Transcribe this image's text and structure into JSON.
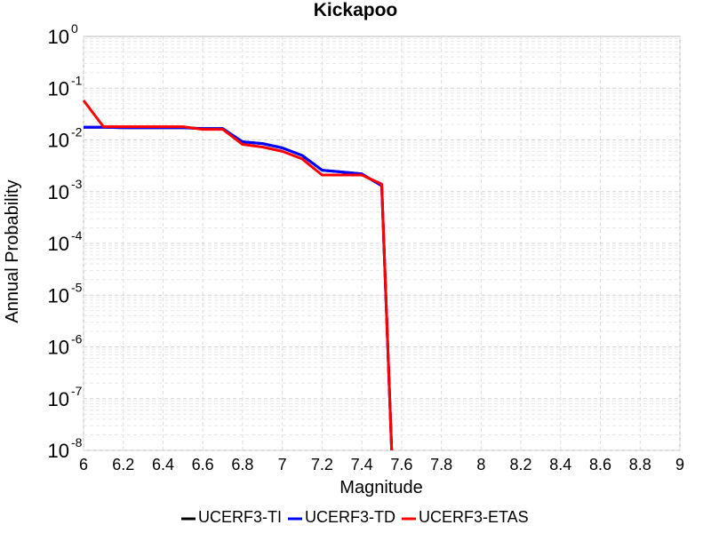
{
  "chart_data": {
    "type": "line",
    "title": "Kickapoo",
    "xlabel": "Magnitude",
    "ylabel": "Annual Probability",
    "xlim": [
      6,
      9
    ],
    "ylim": [
      1e-08,
      1
    ],
    "yscale": "log",
    "grid": true,
    "legend_position": "bottom-center",
    "x_ticks": [
      "6",
      "6.2",
      "6.4",
      "6.6",
      "6.8",
      "7",
      "7.2",
      "7.4",
      "7.6",
      "7.8",
      "8",
      "8.2",
      "8.4",
      "8.6",
      "8.8",
      "9"
    ],
    "y_ticks": [
      {
        "base": "10",
        "exp": "0"
      },
      {
        "base": "10",
        "exp": "-1"
      },
      {
        "base": "10",
        "exp": "-2"
      },
      {
        "base": "10",
        "exp": "-3"
      },
      {
        "base": "10",
        "exp": "-4"
      },
      {
        "base": "10",
        "exp": "-5"
      },
      {
        "base": "10",
        "exp": "-6"
      },
      {
        "base": "10",
        "exp": "-7"
      },
      {
        "base": "10",
        "exp": "-8"
      }
    ],
    "series": [
      {
        "name": "UCERF3-TI",
        "color": "#000000",
        "points": [
          [
            6.0,
            0.0175
          ],
          [
            6.1,
            0.0175
          ],
          [
            6.2,
            0.0172
          ],
          [
            6.3,
            0.0172
          ],
          [
            6.4,
            0.0172
          ],
          [
            6.5,
            0.0172
          ],
          [
            6.6,
            0.0165
          ],
          [
            6.7,
            0.0165
          ],
          [
            6.8,
            0.0092
          ],
          [
            6.9,
            0.0085
          ],
          [
            7.0,
            0.007
          ],
          [
            7.1,
            0.005
          ],
          [
            7.2,
            0.0026
          ],
          [
            7.3,
            0.0024
          ],
          [
            7.4,
            0.0022
          ],
          [
            7.5,
            0.0013
          ],
          [
            7.55,
            1e-08
          ]
        ]
      },
      {
        "name": "UCERF3-TD",
        "color": "#0000ff",
        "points": [
          [
            6.0,
            0.0175
          ],
          [
            6.1,
            0.0175
          ],
          [
            6.2,
            0.0172
          ],
          [
            6.3,
            0.0172
          ],
          [
            6.4,
            0.0172
          ],
          [
            6.5,
            0.0172
          ],
          [
            6.6,
            0.0165
          ],
          [
            6.7,
            0.0165
          ],
          [
            6.8,
            0.0092
          ],
          [
            6.9,
            0.0085
          ],
          [
            7.0,
            0.007
          ],
          [
            7.1,
            0.005
          ],
          [
            7.2,
            0.0026
          ],
          [
            7.3,
            0.0024
          ],
          [
            7.4,
            0.0022
          ],
          [
            7.5,
            0.0013
          ],
          [
            7.55,
            1e-08
          ]
        ]
      },
      {
        "name": "UCERF3-ETAS",
        "color": "#ff0000",
        "points": [
          [
            6.0,
            0.058
          ],
          [
            6.1,
            0.018
          ],
          [
            6.2,
            0.018
          ],
          [
            6.3,
            0.018
          ],
          [
            6.4,
            0.018
          ],
          [
            6.5,
            0.018
          ],
          [
            6.6,
            0.016
          ],
          [
            6.7,
            0.016
          ],
          [
            6.8,
            0.0082
          ],
          [
            6.9,
            0.0073
          ],
          [
            7.0,
            0.006
          ],
          [
            7.1,
            0.0043
          ],
          [
            7.2,
            0.0021
          ],
          [
            7.3,
            0.0021
          ],
          [
            7.4,
            0.0021
          ],
          [
            7.5,
            0.0014
          ],
          [
            7.55,
            1e-08
          ]
        ]
      }
    ]
  }
}
